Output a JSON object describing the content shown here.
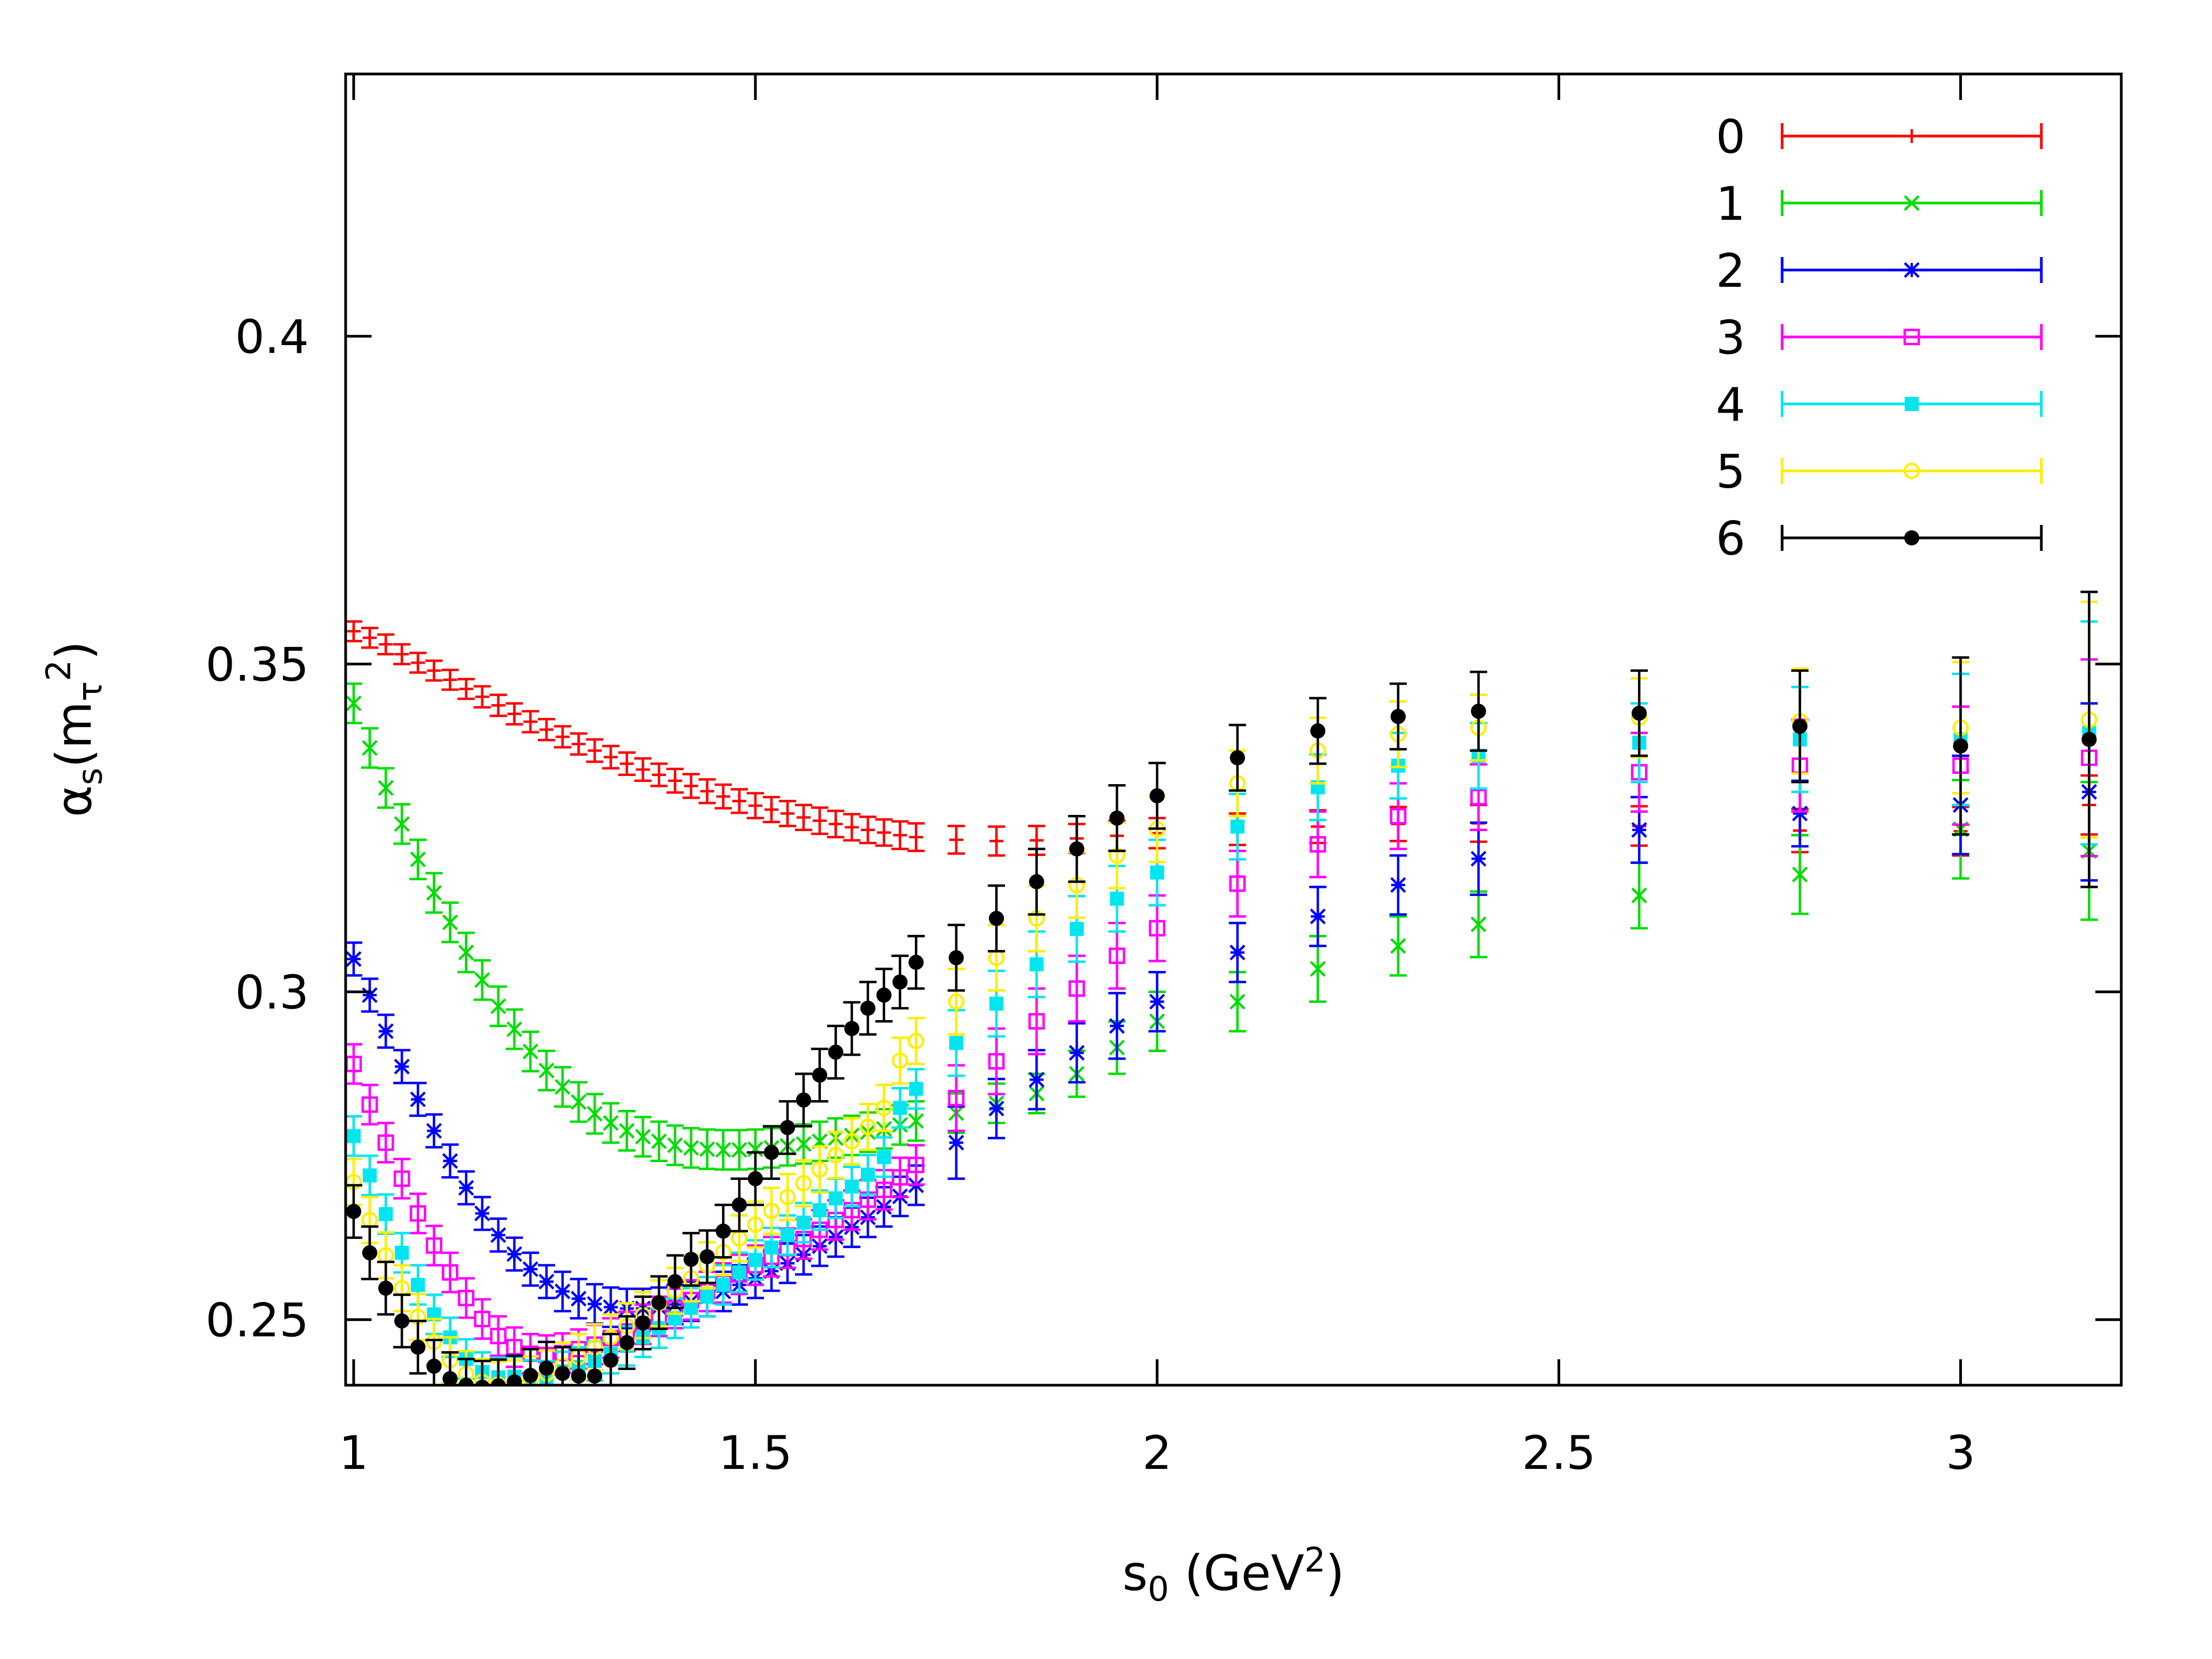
{
  "chart_data": {
    "type": "scatter",
    "title": "",
    "xlabel": {
      "base": "s",
      "sub": "0",
      "after": " (GeV",
      "sup": "2",
      "close": ")"
    },
    "ylabel": {
      "alpha": "α",
      "sub": "s",
      "open": "(m",
      "tau": "τ",
      "sup": "2",
      "close": ")"
    },
    "xlim": [
      0.99,
      3.2
    ],
    "ylim": [
      0.24,
      0.44
    ],
    "xticks": [
      {
        "value": 1,
        "label": "1"
      },
      {
        "value": 1.5,
        "label": "1.5"
      },
      {
        "value": 2,
        "label": "2"
      },
      {
        "value": 2.5,
        "label": "2.5"
      },
      {
        "value": 3,
        "label": "3"
      }
    ],
    "yticks": [
      {
        "value": 0.25,
        "label": "0.25"
      },
      {
        "value": 0.3,
        "label": "0.3"
      },
      {
        "value": 0.35,
        "label": "0.35"
      },
      {
        "value": 0.4,
        "label": "0.4"
      }
    ],
    "grid": false,
    "legend_position": "top-right",
    "x": [
      1.0,
      1.02,
      1.04,
      1.06,
      1.08,
      1.1,
      1.12,
      1.14,
      1.16,
      1.18,
      1.2,
      1.22,
      1.24,
      1.26,
      1.28,
      1.3,
      1.32,
      1.34,
      1.36,
      1.38,
      1.4,
      1.42,
      1.44,
      1.46,
      1.48,
      1.5,
      1.52,
      1.54,
      1.56,
      1.58,
      1.6,
      1.62,
      1.64,
      1.66,
      1.68,
      1.7,
      1.75,
      1.8,
      1.85,
      1.9,
      1.95,
      2.0,
      2.1,
      2.2,
      2.3,
      2.4,
      2.6,
      2.8,
      3.0,
      3.16
    ],
    "series": [
      {
        "name": "0",
        "color": "#ff0000",
        "marker": "plus",
        "values": [
          0.355,
          0.354,
          0.353,
          0.3515,
          0.3502,
          0.349,
          0.3476,
          0.3462,
          0.345,
          0.3437,
          0.3424,
          0.3412,
          0.34,
          0.3389,
          0.3378,
          0.3368,
          0.3358,
          0.3348,
          0.3339,
          0.3331,
          0.3322,
          0.3314,
          0.3306,
          0.3298,
          0.3291,
          0.3284,
          0.3278,
          0.3272,
          0.3266,
          0.3261,
          0.3256,
          0.3251,
          0.3247,
          0.3243,
          0.3239,
          0.3236,
          0.3232,
          0.323,
          0.3231,
          0.3234,
          0.3238,
          0.3242,
          0.3248,
          0.3252,
          0.3256,
          0.3257,
          0.3253,
          0.3246,
          0.3245,
          0.3285
        ],
        "errors": [
          0.0015,
          0.0015,
          0.0015,
          0.0015,
          0.0015,
          0.0015,
          0.0015,
          0.0015,
          0.0016,
          0.0016,
          0.0016,
          0.0016,
          0.0016,
          0.0016,
          0.0016,
          0.0017,
          0.0017,
          0.0017,
          0.0017,
          0.0017,
          0.0018,
          0.0018,
          0.0018,
          0.0018,
          0.0018,
          0.0019,
          0.0019,
          0.0019,
          0.0019,
          0.002,
          0.002,
          0.002,
          0.002,
          0.002,
          0.0021,
          0.0021,
          0.0021,
          0.0022,
          0.0022,
          0.0022,
          0.0023,
          0.0023,
          0.0024,
          0.0025,
          0.0026,
          0.0028,
          0.003,
          0.0033,
          0.0037,
          0.0045
        ]
      },
      {
        "name": "1",
        "color": "#00dd00",
        "marker": "cross",
        "values": [
          0.344,
          0.3372,
          0.3311,
          0.3256,
          0.3202,
          0.3151,
          0.3106,
          0.306,
          0.3018,
          0.2978,
          0.2943,
          0.2909,
          0.288,
          0.2855,
          0.2832,
          0.2814,
          0.28,
          0.2788,
          0.2779,
          0.2772,
          0.2766,
          0.2762,
          0.276,
          0.2759,
          0.2759,
          0.276,
          0.2762,
          0.2765,
          0.2768,
          0.2772,
          0.2777,
          0.2781,
          0.2786,
          0.2791,
          0.2797,
          0.2803,
          0.2815,
          0.283,
          0.2845,
          0.2875,
          0.2915,
          0.2955,
          0.2985,
          0.3035,
          0.307,
          0.3103,
          0.3147,
          0.3179,
          0.3248,
          0.3215
        ],
        "errors": [
          0.003,
          0.003,
          0.003,
          0.003,
          0.003,
          0.003,
          0.003,
          0.003,
          0.003,
          0.003,
          0.003,
          0.003,
          0.003,
          0.003,
          0.003,
          0.003,
          0.003,
          0.003,
          0.003,
          0.003,
          0.003,
          0.003,
          0.003,
          0.003,
          0.003,
          0.003,
          0.003,
          0.003,
          0.003,
          0.003,
          0.003,
          0.003,
          0.003,
          0.003,
          0.003,
          0.003,
          0.003,
          0.003,
          0.003,
          0.0035,
          0.004,
          0.0045,
          0.0045,
          0.005,
          0.0045,
          0.005,
          0.005,
          0.006,
          0.0075,
          0.0105
        ]
      },
      {
        "name": "2",
        "color": "#0000ff",
        "marker": "star",
        "values": [
          0.305,
          0.2995,
          0.294,
          0.2886,
          0.2836,
          0.2788,
          0.2742,
          0.2701,
          0.2662,
          0.2629,
          0.26,
          0.2577,
          0.2558,
          0.2543,
          0.2532,
          0.2524,
          0.2519,
          0.2517,
          0.2517,
          0.2519,
          0.2523,
          0.2528,
          0.2535,
          0.2543,
          0.2553,
          0.2563,
          0.2574,
          0.2586,
          0.2599,
          0.2612,
          0.2626,
          0.2641,
          0.2656,
          0.2672,
          0.2688,
          0.2705,
          0.277,
          0.2822,
          0.2866,
          0.2907,
          0.2948,
          0.2985,
          0.306,
          0.3115,
          0.3163,
          0.3203,
          0.3247,
          0.3272,
          0.3285,
          0.3305
        ],
        "errors": [
          0.0025,
          0.0025,
          0.0025,
          0.0025,
          0.0025,
          0.0025,
          0.0025,
          0.0025,
          0.0025,
          0.0025,
          0.0025,
          0.0025,
          0.0025,
          0.003,
          0.003,
          0.003,
          0.003,
          0.003,
          0.003,
          0.003,
          0.003,
          0.003,
          0.003,
          0.003,
          0.003,
          0.003,
          0.003,
          0.003,
          0.003,
          0.003,
          0.003,
          0.003,
          0.003,
          0.003,
          0.003,
          0.003,
          0.0055,
          0.0045,
          0.0045,
          0.0045,
          0.005,
          0.0045,
          0.0045,
          0.0045,
          0.0045,
          0.0055,
          0.005,
          0.005,
          0.0075,
          0.0135
        ]
      },
      {
        "name": "3",
        "color": "#ff00ff",
        "marker": "square-open",
        "values": [
          0.289,
          0.2828,
          0.277,
          0.2715,
          0.2662,
          0.2613,
          0.2572,
          0.2533,
          0.2501,
          0.2475,
          0.2458,
          0.2448,
          0.2446,
          0.2449,
          0.2455,
          0.2462,
          0.2472,
          0.2482,
          0.2493,
          0.2505,
          0.2517,
          0.253,
          0.2543,
          0.2556,
          0.2569,
          0.2583,
          0.2596,
          0.2609,
          0.2623,
          0.2637,
          0.2652,
          0.2667,
          0.2683,
          0.2698,
          0.2717,
          0.2736,
          0.2838,
          0.2894,
          0.2955,
          0.3005,
          0.3055,
          0.3097,
          0.3165,
          0.3225,
          0.3268,
          0.3297,
          0.3335,
          0.3345,
          0.3345,
          0.3357
        ],
        "errors": [
          0.003,
          0.003,
          0.003,
          0.003,
          0.003,
          0.003,
          0.003,
          0.003,
          0.003,
          0.003,
          0.003,
          0.003,
          0.003,
          0.003,
          0.003,
          0.003,
          0.003,
          0.003,
          0.003,
          0.003,
          0.003,
          0.003,
          0.003,
          0.003,
          0.003,
          0.003,
          0.003,
          0.003,
          0.003,
          0.003,
          0.003,
          0.003,
          0.003,
          0.003,
          0.003,
          0.003,
          0.005,
          0.005,
          0.005,
          0.005,
          0.005,
          0.005,
          0.005,
          0.005,
          0.005,
          0.005,
          0.006,
          0.007,
          0.009,
          0.015
        ]
      },
      {
        "name": "4",
        "color": "#00e5ee",
        "marker": "square-filled",
        "values": [
          0.278,
          0.272,
          0.2661,
          0.2602,
          0.2553,
          0.2508,
          0.2473,
          0.244,
          0.242,
          0.2412,
          0.2413,
          0.2408,
          0.2407,
          0.2421,
          0.2428,
          0.2437,
          0.2448,
          0.246,
          0.2473,
          0.2487,
          0.2502,
          0.2518,
          0.2535,
          0.2553,
          0.2572,
          0.2591,
          0.261,
          0.2629,
          0.2648,
          0.2667,
          0.2685,
          0.2703,
          0.2721,
          0.2748,
          0.2823,
          0.2852,
          0.2922,
          0.2982,
          0.3042,
          0.3096,
          0.3142,
          0.3182,
          0.3252,
          0.3312,
          0.3345,
          0.336,
          0.338,
          0.3385,
          0.3385,
          0.3395
        ],
        "errors": [
          0.003,
          0.003,
          0.003,
          0.003,
          0.003,
          0.003,
          0.003,
          0.003,
          0.003,
          0.003,
          0.003,
          0.003,
          0.003,
          0.003,
          0.003,
          0.003,
          0.003,
          0.003,
          0.003,
          0.003,
          0.003,
          0.003,
          0.003,
          0.003,
          0.003,
          0.003,
          0.003,
          0.003,
          0.003,
          0.003,
          0.003,
          0.003,
          0.003,
          0.003,
          0.003,
          0.003,
          0.005,
          0.005,
          0.005,
          0.005,
          0.005,
          0.005,
          0.005,
          0.005,
          0.005,
          0.005,
          0.006,
          0.008,
          0.01,
          0.017
        ]
      },
      {
        "name": "5",
        "color": "#ffee00",
        "marker": "circle-open",
        "values": [
          0.271,
          0.2652,
          0.2598,
          0.2548,
          0.2504,
          0.2466,
          0.2438,
          0.2417,
          0.2405,
          0.2401,
          0.2403,
          0.2409,
          0.2418,
          0.243,
          0.2443,
          0.2458,
          0.2473,
          0.249,
          0.2507,
          0.2525,
          0.2544,
          0.2563,
          0.2583,
          0.2603,
          0.2624,
          0.2645,
          0.2666,
          0.2687,
          0.2708,
          0.2729,
          0.2751,
          0.2772,
          0.2794,
          0.2823,
          0.2895,
          0.2925,
          0.2985,
          0.3052,
          0.3112,
          0.3163,
          0.3208,
          0.3248,
          0.3318,
          0.3368,
          0.3393,
          0.3403,
          0.3418,
          0.3413,
          0.3403,
          0.3415
        ],
        "errors": [
          0.0035,
          0.0035,
          0.0035,
          0.0035,
          0.0035,
          0.0035,
          0.0035,
          0.0035,
          0.0035,
          0.0035,
          0.0035,
          0.0035,
          0.0035,
          0.0035,
          0.0035,
          0.0035,
          0.0035,
          0.0035,
          0.0035,
          0.0035,
          0.0035,
          0.0035,
          0.0035,
          0.0035,
          0.0035,
          0.0035,
          0.0035,
          0.0035,
          0.0035,
          0.0035,
          0.0035,
          0.0035,
          0.0035,
          0.0035,
          0.0035,
          0.0035,
          0.005,
          0.005,
          0.005,
          0.005,
          0.005,
          0.005,
          0.005,
          0.005,
          0.005,
          0.005,
          0.006,
          0.008,
          0.01,
          0.018
        ]
      },
      {
        "name": "6",
        "color": "#000000",
        "marker": "circle-filled",
        "values": [
          0.2665,
          0.2602,
          0.2548,
          0.2498,
          0.2458,
          0.2429,
          0.241,
          0.24,
          0.2397,
          0.2399,
          0.2405,
          0.2415,
          0.2426,
          0.2418,
          0.2414,
          0.2414,
          0.2438,
          0.2465,
          0.2495,
          0.2526,
          0.2558,
          0.2592,
          0.2596,
          0.2635,
          0.2675,
          0.2715,
          0.2755,
          0.2793,
          0.2835,
          0.2873,
          0.2908,
          0.2944,
          0.2975,
          0.2995,
          0.3015,
          0.3045,
          0.3052,
          0.3112,
          0.3168,
          0.3218,
          0.3265,
          0.3299,
          0.3357,
          0.3398,
          0.342,
          0.3428,
          0.3425,
          0.3405,
          0.3375,
          0.3385
        ],
        "errors": [
          0.004,
          0.004,
          0.004,
          0.004,
          0.004,
          0.004,
          0.004,
          0.004,
          0.004,
          0.004,
          0.004,
          0.004,
          0.004,
          0.004,
          0.004,
          0.004,
          0.004,
          0.004,
          0.004,
          0.004,
          0.004,
          0.004,
          0.004,
          0.004,
          0.004,
          0.004,
          0.004,
          0.004,
          0.004,
          0.004,
          0.004,
          0.004,
          0.004,
          0.004,
          0.004,
          0.004,
          0.005,
          0.005,
          0.005,
          0.005,
          0.005,
          0.005,
          0.005,
          0.005,
          0.005,
          0.006,
          0.0065,
          0.0085,
          0.0135,
          0.0225
        ]
      }
    ]
  }
}
